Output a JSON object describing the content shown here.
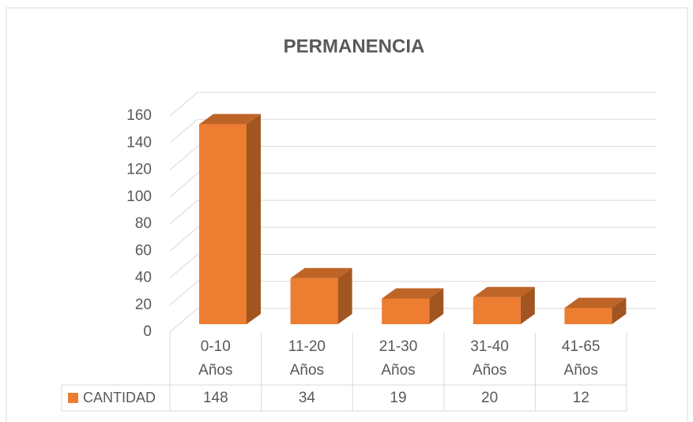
{
  "chart_data": {
    "type": "bar3d",
    "title": "PERMANENCIA",
    "categories": [
      "0-10 Años",
      "11-20 Años",
      "21-30 Años",
      "31-40 Años",
      "41-65 Años"
    ],
    "series": [
      {
        "name": "CANTIDAD",
        "color": "#ED7D31",
        "values": [
          148,
          34,
          19,
          20,
          12
        ]
      }
    ],
    "ylim": [
      0,
      160
    ],
    "yticks": [
      0,
      20,
      40,
      60,
      80,
      100,
      120,
      140,
      160
    ],
    "grid": true,
    "data_table": true
  }
}
